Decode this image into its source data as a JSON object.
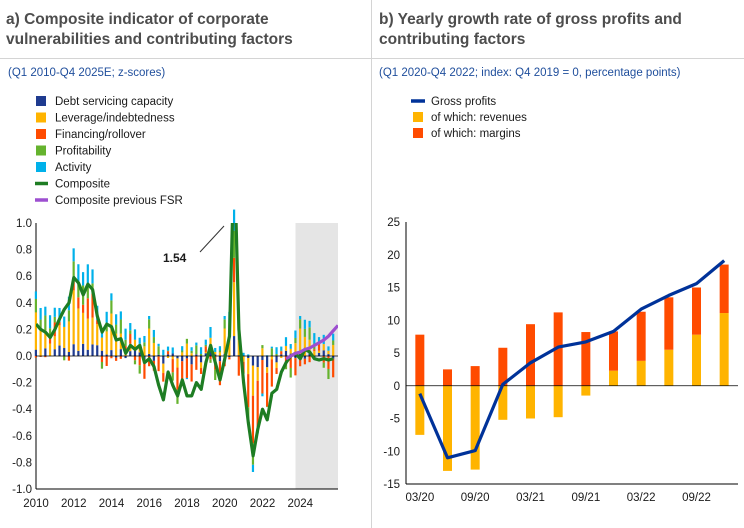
{
  "panel_a": {
    "title_line1": "a) Composite indicator of corporate",
    "title_line2": "vulnerabilities and contributing factors",
    "subtitle": "(Q1 2010-Q4 2025E; z-scores)"
  },
  "panel_b": {
    "title_line1": "b) Yearly growth rate of gross profits and",
    "title_line2": "contributing factors",
    "subtitle": "(Q1 2020-Q4 2022; index: Q4 2019 = 0, percentage points)"
  },
  "colors": {
    "debt": "#1f3b8f",
    "leverage": "#ffb400",
    "financing": "#ff4b00",
    "profitability": "#65b32e",
    "activity": "#00b1ea",
    "composite": "#1e7d23",
    "previous": "#9d4fd0",
    "gross": "#003299",
    "shade": "#e5e5e5"
  },
  "chart_data": [
    {
      "type": "bar",
      "title": "Composite indicator of corporate vulnerabilities and contributing factors",
      "ylim": [
        -1.0,
        1.0
      ],
      "yticks": [
        "1.0",
        "0.8",
        "0.6",
        "0.4",
        "0.2",
        "0.0",
        "-0.2",
        "-0.4",
        "-0.6",
        "-0.8",
        "-1.0"
      ],
      "xticks": [
        "2010",
        "2012",
        "2014",
        "2016",
        "2018",
        "2020",
        "2022",
        "2024"
      ],
      "annotation": "1.54",
      "legend": [
        {
          "key": "debt",
          "label": "Debt servicing capacity"
        },
        {
          "key": "leverage",
          "label": "Leverage/indebtedness"
        },
        {
          "key": "financing",
          "label": "Financing/rollover"
        },
        {
          "key": "profitability",
          "label": "Profitability"
        },
        {
          "key": "activity",
          "label": "Activity"
        },
        {
          "key": "composite",
          "label": "Composite"
        },
        {
          "key": "previous",
          "label": "Composite previous FSR"
        }
      ],
      "shaded_from": 2023.75,
      "composite": [
        [
          2010.0,
          0.24
        ],
        [
          2010.25,
          0.2
        ],
        [
          2010.5,
          0.18
        ],
        [
          2010.75,
          0.14
        ],
        [
          2011.0,
          0.2
        ],
        [
          2011.25,
          0.28
        ],
        [
          2011.5,
          0.35
        ],
        [
          2011.75,
          0.4
        ],
        [
          2012.0,
          0.59
        ],
        [
          2012.25,
          0.55
        ],
        [
          2012.5,
          0.46
        ],
        [
          2012.75,
          0.54
        ],
        [
          2013.0,
          0.5
        ],
        [
          2013.25,
          0.3
        ],
        [
          2013.5,
          0.18
        ],
        [
          2013.75,
          0.24
        ],
        [
          2014.0,
          0.22
        ],
        [
          2014.25,
          0.12
        ],
        [
          2014.5,
          0.13
        ],
        [
          2014.75,
          0.02
        ],
        [
          2015.0,
          0.08
        ],
        [
          2015.25,
          0.05
        ],
        [
          2015.5,
          0.08
        ],
        [
          2015.75,
          -0.05
        ],
        [
          2016.0,
          -0.02
        ],
        [
          2016.25,
          -0.08
        ],
        [
          2016.5,
          -0.22
        ],
        [
          2016.75,
          -0.33
        ],
        [
          2017.0,
          -0.12
        ],
        [
          2017.25,
          -0.22
        ],
        [
          2017.5,
          -0.3
        ],
        [
          2017.75,
          -0.18
        ],
        [
          2018.0,
          -0.3
        ],
        [
          2018.25,
          -0.3
        ],
        [
          2018.5,
          -0.2
        ],
        [
          2018.75,
          -0.25
        ],
        [
          2019.0,
          -0.05
        ],
        [
          2019.25,
          0.08
        ],
        [
          2019.5,
          -0.05
        ],
        [
          2019.75,
          -0.18
        ],
        [
          2020.0,
          -0.02
        ],
        [
          2020.25,
          0.15
        ],
        [
          2020.5,
          1.54
        ],
        [
          2020.75,
          0.2
        ],
        [
          2021.0,
          -0.2
        ],
        [
          2021.25,
          -0.5
        ],
        [
          2021.5,
          -0.75
        ],
        [
          2021.75,
          -0.55
        ],
        [
          2022.0,
          -0.4
        ],
        [
          2022.25,
          -0.48
        ],
        [
          2022.5,
          -0.28
        ],
        [
          2022.75,
          -0.25
        ],
        [
          2023.0,
          -0.12
        ],
        [
          2023.25,
          -0.05
        ],
        [
          2023.5,
          0.0
        ],
        [
          2023.75,
          0.02
        ],
        [
          2024.0,
          -0.02
        ],
        [
          2024.25,
          0.05
        ],
        [
          2024.5,
          0.03
        ],
        [
          2024.75,
          -0.02
        ],
        [
          2025.0,
          -0.03
        ],
        [
          2025.25,
          -0.02
        ],
        [
          2025.5,
          -0.03
        ],
        [
          2025.75,
          -0.02
        ]
      ],
      "previous_fsr": [
        [
          2023.25,
          -0.02
        ],
        [
          2023.5,
          0.0
        ],
        [
          2023.75,
          0.02
        ],
        [
          2024.0,
          0.03
        ],
        [
          2024.25,
          0.05
        ],
        [
          2024.5,
          0.06
        ],
        [
          2024.75,
          0.08
        ],
        [
          2025.0,
          0.1
        ],
        [
          2025.25,
          0.12
        ],
        [
          2025.5,
          0.15
        ],
        [
          2025.75,
          0.19
        ],
        [
          2026.0,
          0.23
        ]
      ],
      "bar_samples": {
        "debt": [
          0.02,
          -0.03,
          0.04,
          -0.02,
          0.03,
          0.05,
          0.02,
          -0.02
        ],
        "leverage": [
          0.06,
          0.04,
          0.1,
          0.22,
          0.14,
          0.08,
          0.05,
          0.03
        ],
        "financing": [
          -0.06,
          0.02,
          0.06,
          -0.05,
          -0.1,
          -0.15,
          -0.08,
          -0.06
        ],
        "profitability": [
          0.04,
          0.08,
          0.06,
          0.1,
          0.05,
          0.02,
          -0.04,
          -0.08
        ],
        "activity": [
          0.05,
          0.08,
          0.04,
          0.06,
          0.03,
          0.07,
          0.05,
          0.09
        ]
      }
    },
    {
      "type": "bar",
      "title": "Yearly growth rate of gross profits and contributing factors",
      "ylim": [
        -15,
        25
      ],
      "yticks": [
        "25",
        "20",
        "15",
        "10",
        "5",
        "0",
        "-5",
        "-10",
        "-15"
      ],
      "categories": [
        "03/20",
        "06/20",
        "09/20",
        "12/20",
        "03/21",
        "06/21",
        "09/21",
        "12/21",
        "03/22",
        "06/22",
        "09/22",
        "12/22"
      ],
      "xticks": [
        "03/20",
        "09/20",
        "03/21",
        "09/21",
        "03/22",
        "09/22"
      ],
      "legend": [
        {
          "key": "gross",
          "label": "Gross profits"
        },
        {
          "key": "leverage",
          "label": "of which: revenues"
        },
        {
          "key": "financing",
          "label": "of which: margins"
        }
      ],
      "series": [
        {
          "name": "Gross profits",
          "values": [
            -1.2,
            -11.0,
            -9.9,
            0.2,
            3.5,
            5.9,
            6.7,
            8.3,
            11.7,
            13.8,
            15.6,
            19.1
          ]
        },
        {
          "name": "of which: revenues",
          "values": [
            -7.5,
            -13.0,
            -12.8,
            -5.2,
            -5.0,
            -4.8,
            -1.5,
            2.3,
            3.8,
            5.5,
            7.8,
            11.1
          ]
        },
        {
          "name": "of which: margins",
          "values": [
            7.8,
            2.5,
            3.0,
            5.8,
            9.4,
            11.2,
            8.2,
            6.0,
            7.5,
            8.0,
            7.2,
            7.4
          ]
        }
      ]
    }
  ]
}
